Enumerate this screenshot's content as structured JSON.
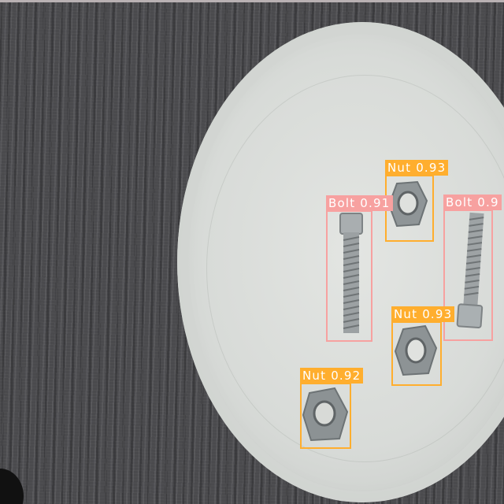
{
  "detections": [
    {
      "id": "nut-1",
      "label": "Nut",
      "score": "0.93",
      "class_color": "#ffae2e"
    },
    {
      "id": "bolt-1",
      "label": "Bolt",
      "score": "0.91",
      "class_color": "#f7a1a0"
    },
    {
      "id": "bolt-2",
      "label": "Bolt",
      "score": "0.9",
      "class_color": "#f7a1a0"
    },
    {
      "id": "nut-2",
      "label": "Nut",
      "score": "0.93",
      "class_color": "#ffae2e"
    },
    {
      "id": "nut-3",
      "label": "Nut",
      "score": "0.92",
      "class_color": "#ffae2e"
    }
  ]
}
